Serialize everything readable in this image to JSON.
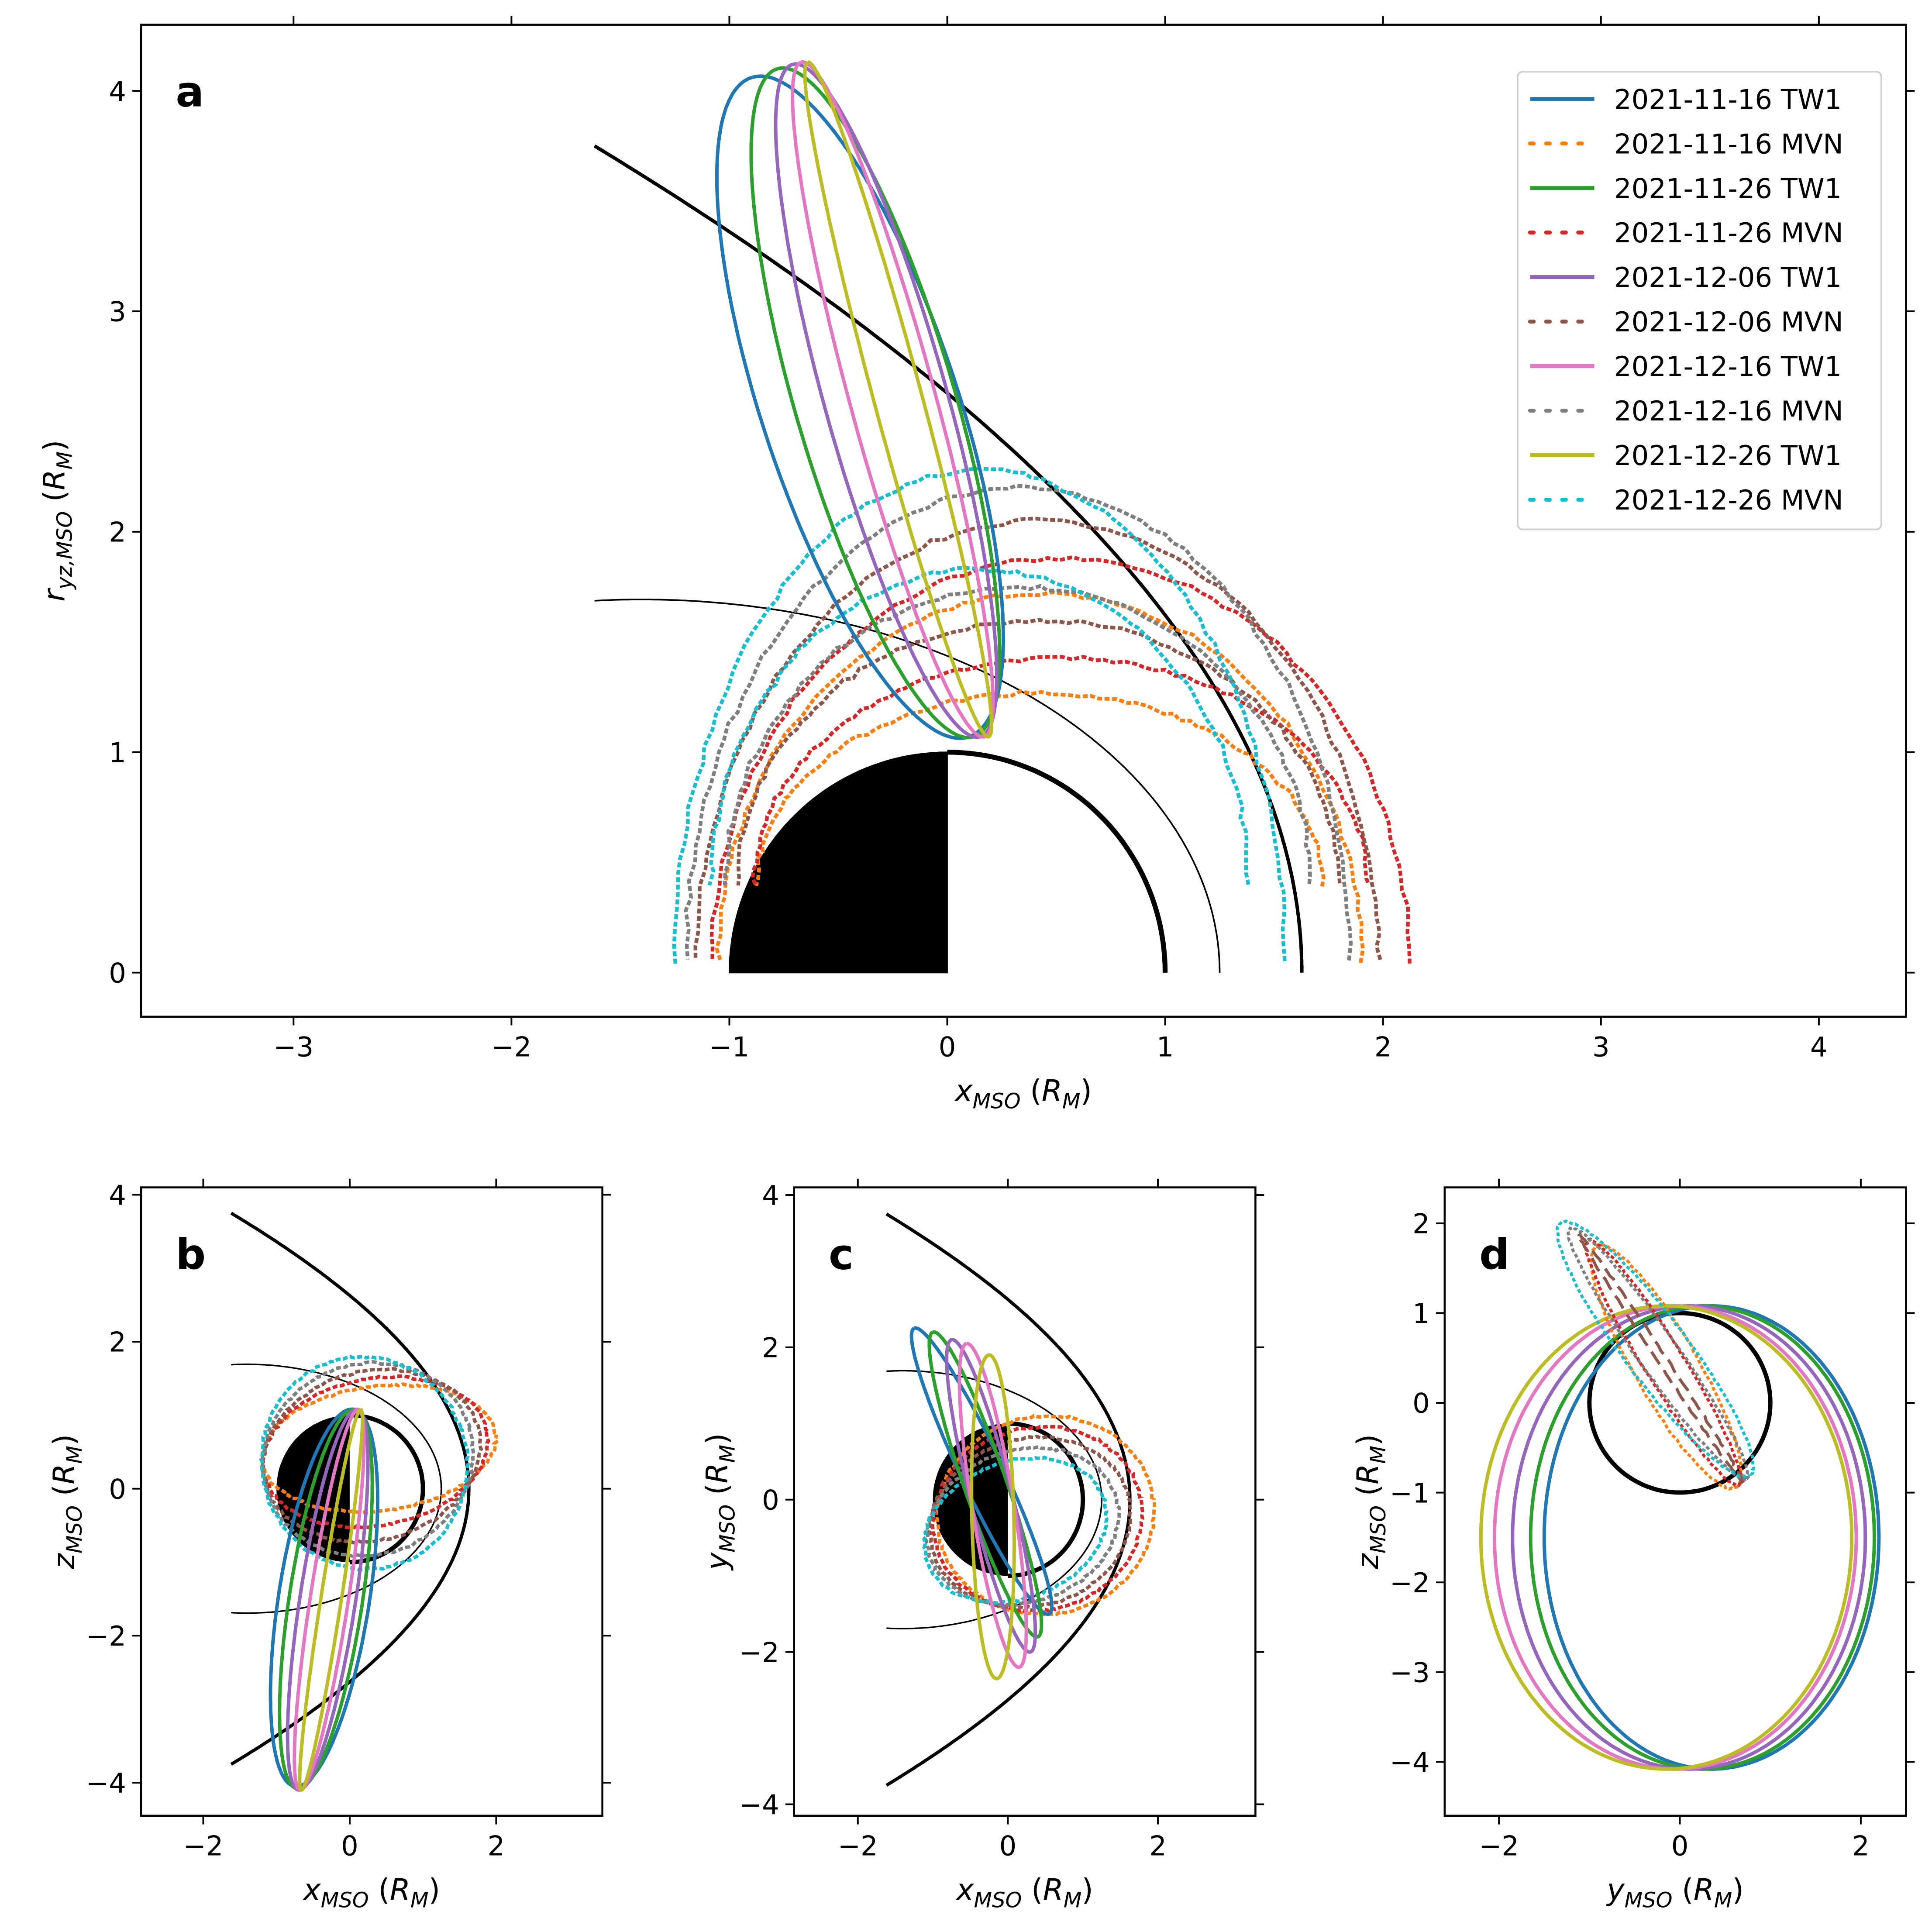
{
  "colors": {
    "TW1_1116": "#1f77b4",
    "MVN_1116": "#ff7f0e",
    "TW1_1126": "#2ca02c",
    "MVN_1126": "#d62728",
    "TW1_1206": "#9467bd",
    "MVN_1206": "#8c564b",
    "TW1_1216": "#e377c2",
    "MVN_1216": "#7f7f7f",
    "TW1_1226": "#bcbd22",
    "MVN_1226": "#17becf",
    "boundary": "#000000"
  },
  "legend": [
    {
      "label": "2021-11-16 TW1",
      "color": "#1f77b4",
      "style": "solid"
    },
    {
      "label": "2021-11-16 MVN",
      "color": "#ff7f0e",
      "style": "dotted"
    },
    {
      "label": "2021-11-26 TW1",
      "color": "#2ca02c",
      "style": "solid"
    },
    {
      "label": "2021-11-26 MVN",
      "color": "#d62728",
      "style": "dotted"
    },
    {
      "label": "2021-12-06 TW1",
      "color": "#9467bd",
      "style": "solid"
    },
    {
      "label": "2021-12-06 MVN",
      "color": "#8c564b",
      "style": "dotted"
    },
    {
      "label": "2021-12-16 TW1",
      "color": "#e377c2",
      "style": "solid"
    },
    {
      "label": "2021-12-16 MVN",
      "color": "#7f7f7f",
      "style": "dotted"
    },
    {
      "label": "2021-12-26 TW1",
      "color": "#bcbd22",
      "style": "solid"
    },
    {
      "label": "2021-12-26 MVN",
      "color": "#17becf",
      "style": "dotted"
    }
  ],
  "chart_data": [
    {
      "panel": "a",
      "type": "line",
      "xlabel": "x_MSO (R_M)",
      "ylabel": "r_yz,MSO (R_M)",
      "xlim": [
        -3.7,
        4.4
      ],
      "ylim": [
        -0.2,
        4.3
      ],
      "xticks": [
        -3,
        -2,
        -1,
        0,
        1,
        2,
        3,
        4
      ],
      "yticks": [
        0,
        1,
        2,
        3,
        4
      ],
      "legend_position": "top-right",
      "planet": {
        "radius": 1,
        "nightside": "filled"
      },
      "bow_shock": {
        "x0": 0.6,
        "L": 2.081,
        "e": 1.026
      },
      "mpb": {
        "x0": 0.64,
        "L": 1.08,
        "e": 0.77
      },
      "tw1_orbits": [
        {
          "date": "2021-11-16",
          "apex": [
            -0.9,
            4.06
          ],
          "periapsis": [
            0.1,
            1.07
          ]
        },
        {
          "date": "2021-11-26",
          "apex": [
            -0.78,
            4.1
          ],
          "periapsis": [
            0.12,
            1.07
          ]
        },
        {
          "date": "2021-12-06",
          "apex": [
            -0.71,
            4.12
          ],
          "periapsis": [
            0.15,
            1.07
          ]
        },
        {
          "date": "2021-12-16",
          "apex": [
            -0.67,
            4.13
          ],
          "periapsis": [
            0.17,
            1.07
          ]
        },
        {
          "date": "2021-12-26",
          "apex": [
            -0.64,
            4.13
          ],
          "periapsis": [
            0.19,
            1.07
          ]
        }
      ],
      "mvn_orbits": [
        {
          "date": "2021-11-16",
          "x_range": [
            -1.05,
            1.9
          ],
          "r_max": 1.72
        },
        {
          "date": "2021-11-26",
          "x_range": [
            -1.08,
            2.12
          ],
          "r_max": 1.88
        },
        {
          "date": "2021-12-06",
          "x_range": [
            -1.15,
            1.98
          ],
          "r_max": 2.05
        },
        {
          "date": "2021-12-16",
          "x_range": [
            -1.2,
            1.85
          ],
          "r_max": 2.2
        },
        {
          "date": "2021-12-26",
          "x_range": [
            -1.25,
            1.55
          ],
          "r_max": 2.28
        }
      ]
    },
    {
      "panel": "b",
      "type": "line",
      "xlabel": "x_MSO (R_M)",
      "ylabel": "z_MSO (R_M)",
      "xlim": [
        -2.85,
        3.45
      ],
      "ylim": [
        -4.45,
        4.1
      ],
      "xticks": [
        -2,
        0,
        2
      ],
      "yticks": [
        -4,
        -2,
        0,
        2,
        4
      ],
      "tw1_extent_z": [
        -4.1,
        1.1
      ],
      "mvn_extent_x": [
        -1.3,
        2.15
      ]
    },
    {
      "panel": "c",
      "type": "line",
      "xlabel": "x_MSO (R_M)",
      "ylabel": "y_MSO (R_M)",
      "xlim": [
        -2.85,
        3.3
      ],
      "ylim": [
        -4.15,
        4.1
      ],
      "xticks": [
        -2,
        0,
        2
      ],
      "yticks": [
        -4,
        -2,
        0,
        2,
        4
      ],
      "tw1_extent_y": [
        -2.35,
        2.25
      ],
      "mvn_extent_x": [
        -1.3,
        2.15
      ]
    },
    {
      "panel": "d",
      "type": "line",
      "xlabel": "y_MSO (R_M)",
      "ylabel": "z_MSO (R_M)",
      "xlim": [
        -2.6,
        2.5
      ],
      "ylim": [
        -4.6,
        2.4
      ],
      "xticks": [
        -2,
        0,
        2
      ],
      "yticks": [
        -4,
        -3,
        -2,
        -1,
        0,
        1,
        2
      ],
      "tw1_extent_z": [
        -4.1,
        1.1
      ],
      "mvn_extent_z": [
        -1.0,
        1.9
      ]
    }
  ]
}
